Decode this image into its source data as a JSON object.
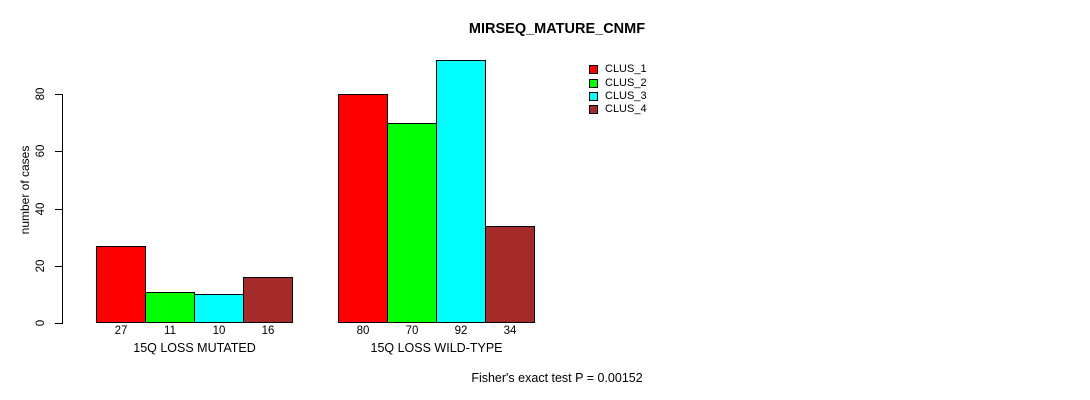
{
  "title": "MIRSEQ_MATURE_CNMF",
  "footer": "Fisher's exact test P = 0.00152",
  "chart_data": {
    "type": "bar",
    "categories": [
      "15Q LOSS MUTATED",
      "15Q LOSS WILD-TYPE"
    ],
    "series": [
      {
        "name": "CLUS_1",
        "color": "#ff0000",
        "values": [
          27,
          80
        ]
      },
      {
        "name": "CLUS_2",
        "color": "#00ff00",
        "values": [
          11,
          70
        ]
      },
      {
        "name": "CLUS_3",
        "color": "#00ffff",
        "values": [
          10,
          92
        ]
      },
      {
        "name": "CLUS_4",
        "color": "#a52a2a",
        "values": [
          16,
          34
        ]
      }
    ],
    "ylabel": "number of cases",
    "yticks": [
      0,
      20,
      40,
      60,
      80
    ],
    "ylim": [
      0,
      92.8
    ],
    "show_bar_values": true,
    "legend_position": "top-right",
    "grid": false
  }
}
